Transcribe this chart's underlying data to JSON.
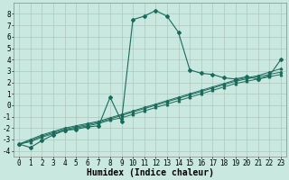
{
  "bg_color": "#c8e8e0",
  "grid_color": "#b0c8c0",
  "line_color": "#1a6a5a",
  "xlabel": "Humidex (Indice chaleur)",
  "xlabel_fontsize": 7,
  "tick_fontsize": 5.5,
  "xlim": [
    -0.5,
    23.5
  ],
  "ylim": [
    -4.5,
    9.0
  ],
  "yticks": [
    -4,
    -3,
    -2,
    -1,
    0,
    1,
    2,
    3,
    4,
    5,
    6,
    7,
    8
  ],
  "xticks": [
    0,
    1,
    2,
    3,
    4,
    5,
    6,
    7,
    8,
    9,
    10,
    11,
    12,
    13,
    14,
    15,
    16,
    17,
    18,
    19,
    20,
    21,
    22,
    23
  ],
  "series0_x": [
    0,
    1,
    2,
    3,
    4,
    5,
    6,
    7,
    8,
    9,
    10,
    11,
    12,
    13,
    14,
    15,
    16,
    17,
    18,
    19,
    20,
    21,
    22,
    23
  ],
  "series0_y": [
    -3.4,
    -3.7,
    -3.1,
    -2.6,
    -2.2,
    -2.1,
    -1.9,
    -1.8,
    0.7,
    -1.4,
    7.5,
    7.8,
    8.3,
    7.8,
    6.4,
    3.1,
    2.8,
    2.7,
    2.4,
    2.3,
    2.5,
    2.3,
    2.6,
    4.0
  ],
  "series1_x": [
    0,
    1,
    2,
    3,
    4,
    5,
    6,
    7,
    8,
    9,
    10,
    11,
    12,
    13,
    14,
    15,
    16,
    17,
    18,
    19,
    20,
    21,
    22,
    23
  ],
  "series1_y": [
    -3.4,
    -3.2,
    -2.8,
    -2.5,
    -2.2,
    -2.0,
    -1.8,
    -1.6,
    -1.3,
    -1.1,
    -0.8,
    -0.5,
    -0.2,
    0.1,
    0.4,
    0.7,
    1.0,
    1.3,
    1.6,
    1.9,
    2.1,
    2.3,
    2.5,
    2.7
  ],
  "series2_x": [
    0,
    1,
    2,
    3,
    4,
    5,
    6,
    7,
    8,
    9,
    10,
    11,
    12,
    13,
    14,
    15,
    16,
    17,
    18,
    19,
    20,
    21,
    22,
    23
  ],
  "series2_y": [
    -3.4,
    -3.1,
    -2.7,
    -2.4,
    -2.1,
    -1.9,
    -1.7,
    -1.5,
    -1.2,
    -0.9,
    -0.6,
    -0.3,
    0.0,
    0.3,
    0.6,
    0.9,
    1.2,
    1.5,
    1.8,
    2.1,
    2.3,
    2.5,
    2.7,
    2.9
  ],
  "series3_x": [
    0,
    1,
    2,
    3,
    4,
    5,
    6,
    7,
    8,
    9,
    10,
    11,
    12,
    13,
    14,
    15,
    16,
    17,
    18,
    19,
    20,
    21,
    22,
    23
  ],
  "series3_y": [
    -3.4,
    -3.0,
    -2.6,
    -2.3,
    -2.0,
    -1.8,
    -1.6,
    -1.4,
    -1.1,
    -0.8,
    -0.5,
    -0.2,
    0.1,
    0.4,
    0.7,
    1.0,
    1.3,
    1.6,
    1.9,
    2.2,
    2.4,
    2.6,
    2.9,
    3.2
  ]
}
